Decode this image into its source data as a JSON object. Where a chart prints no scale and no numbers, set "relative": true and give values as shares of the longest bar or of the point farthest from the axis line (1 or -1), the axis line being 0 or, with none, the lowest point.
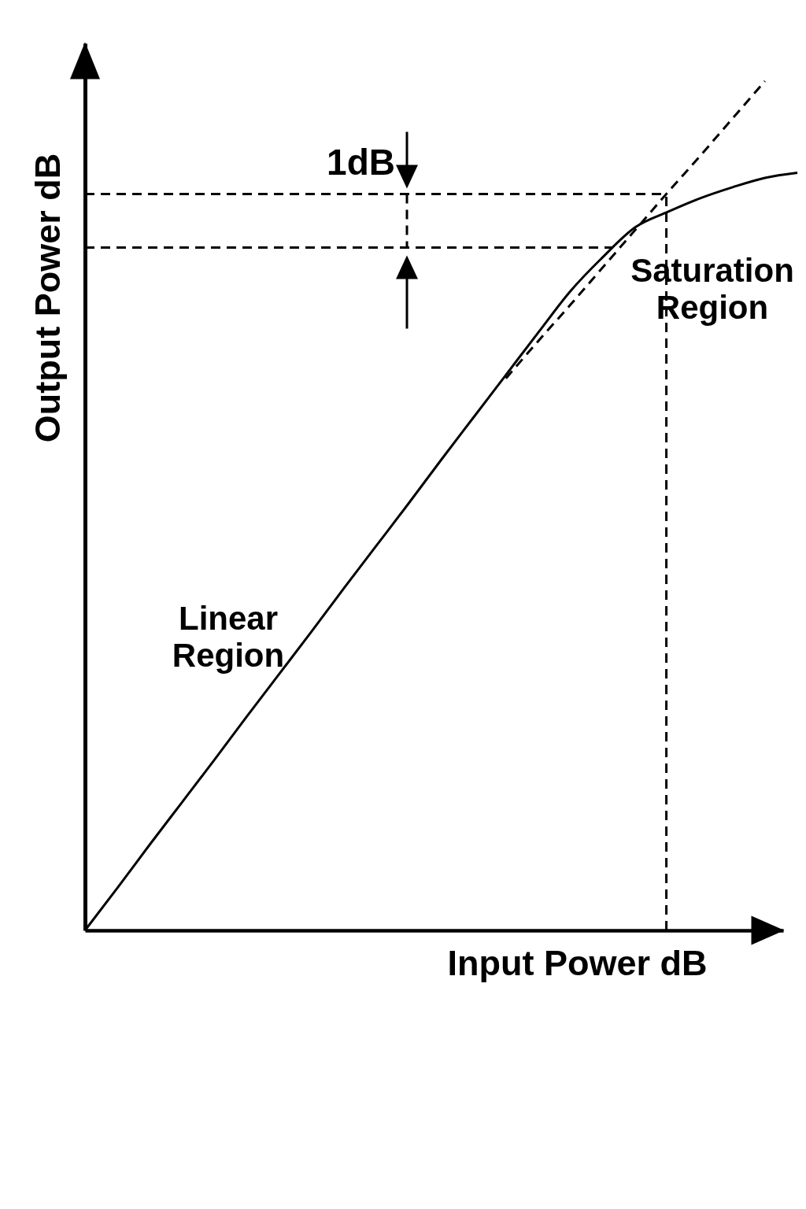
{
  "chart_data": {
    "type": "line",
    "relative": true,
    "xlabel": "Input Power dB",
    "ylabel": "Output Power dB",
    "grid": false,
    "categories": [
      null,
      null,
      null,
      null,
      null,
      null,
      null,
      null,
      null,
      null,
      null,
      null,
      null,
      null,
      null,
      null,
      null,
      null,
      null,
      null,
      null,
      null,
      null
    ],
    "series": [
      {
        "color": "#000000",
        "line_style": "solid",
        "values": [
          0,
          0.05,
          0.101,
          0.151,
          0.201,
          0.252,
          0.302,
          0.352,
          0.403,
          0.453,
          0.503,
          0.554,
          0.604,
          0.654,
          0.704,
          0.753,
          0.793,
          0.828,
          0.846,
          0.862,
          0.875,
          0.886,
          0.892
        ]
      },
      {
        "color": "#000000",
        "line_style": "dashed",
        "values": [
          null,
          null,
          null,
          null,
          null,
          null,
          null,
          null,
          null,
          null,
          null,
          null,
          null,
          0.65,
          0.694,
          0.737,
          0.781,
          0.825,
          0.869,
          0.912,
          0.956,
          1.0,
          null
        ]
      }
    ],
    "ref_lines": [
      {
        "axis": "y",
        "value": 0.867,
        "color": "#000000",
        "line_style": "dashed"
      },
      {
        "axis": "y",
        "value": 0.804,
        "color": "#000000",
        "line_style": "dashed"
      }
    ],
    "annotations": [
      {
        "text": "1dB",
        "y": 0.867
      },
      "Linear Region",
      "Saturation Region"
    ]
  }
}
